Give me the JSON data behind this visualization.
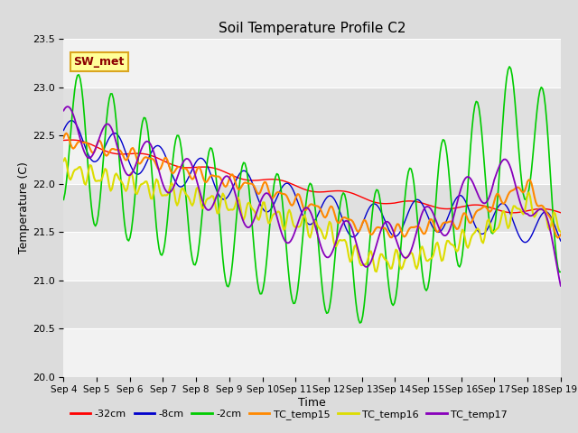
{
  "title": "Soil Temperature Profile C2",
  "xlabel": "Time",
  "ylabel": "Temperature (C)",
  "ylim": [
    20.0,
    23.5
  ],
  "yticks": [
    20.0,
    20.5,
    21.0,
    21.5,
    22.0,
    22.5,
    23.0,
    23.5
  ],
  "date_labels": [
    "Sep 4",
    "Sep 5",
    "Sep 6",
    "Sep 7",
    "Sep 8",
    "Sep 9",
    "Sep 10",
    "Sep 11",
    "Sep 12",
    "Sep 13",
    "Sep 14",
    "Sep 15",
    "Sep 16",
    "Sep 17",
    "Sep 18",
    "Sep 19"
  ],
  "n_days": 15,
  "annotation_text": "SW_met",
  "annotation_color": "#8B0000",
  "annotation_bg": "#FFFF99",
  "annotation_border": "#DAA520",
  "line_colors": {
    "neg32cm": "#FF0000",
    "neg8cm": "#0000CC",
    "neg2cm": "#00CC00",
    "TC_temp15": "#FF8800",
    "TC_temp16": "#DDDD00",
    "TC_temp17": "#8800BB"
  },
  "line_labels": [
    "-32cm",
    "-8cm",
    "-2cm",
    "TC_temp15",
    "TC_temp16",
    "TC_temp17"
  ],
  "fig_bg": "#DCDCDC",
  "plot_bg_light": "#F2F2F2",
  "plot_bg_dark": "#E0E0E0",
  "grid_color": "#FFFFFF"
}
